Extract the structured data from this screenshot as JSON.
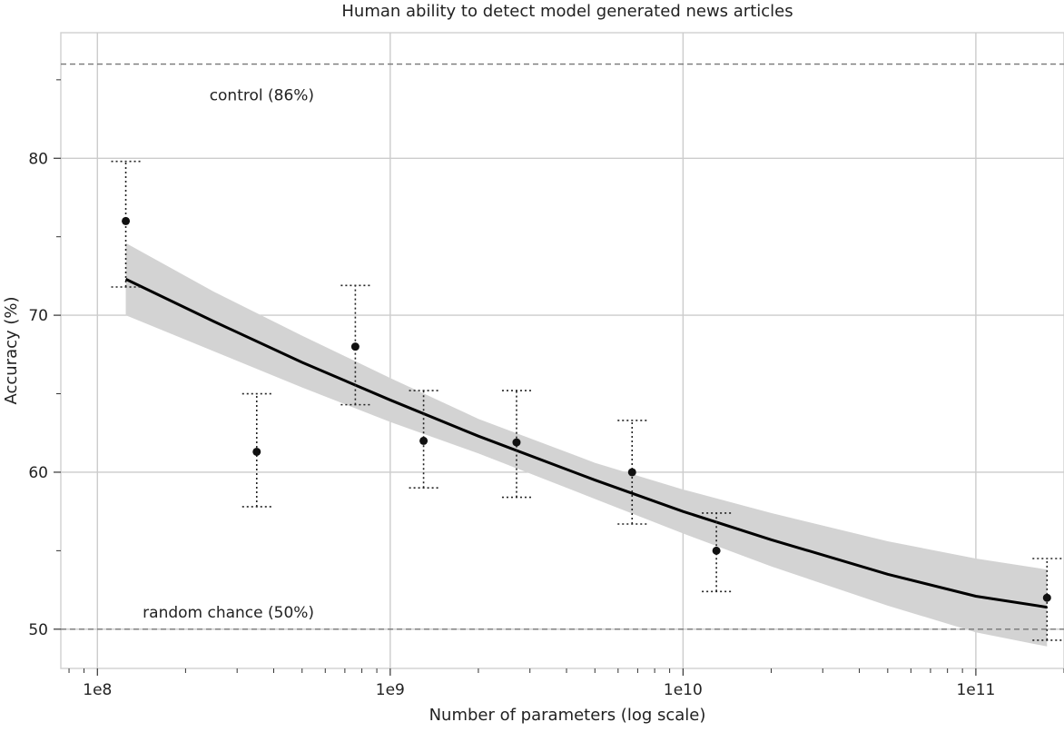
{
  "chart_data": {
    "type": "scatter",
    "title": "Human ability to detect model generated news articles",
    "xlabel": "Number of parameters (log scale)",
    "ylabel": "Accuracy (%)",
    "xscale": "log",
    "xlim": [
      75000000.0,
      200000000000.0
    ],
    "ylim": [
      47.5,
      88
    ],
    "grid": true,
    "legend": "none",
    "x_ticks": [
      {
        "value": 100000000.0,
        "label": "1e8"
      },
      {
        "value": 1000000000.0,
        "label": "1e9"
      },
      {
        "value": 10000000000.0,
        "label": "1e10"
      },
      {
        "value": 100000000000.0,
        "label": "1e11"
      }
    ],
    "y_ticks": [
      {
        "value": 50,
        "label": "50"
      },
      {
        "value": 60,
        "label": "60"
      },
      {
        "value": 70,
        "label": "70"
      },
      {
        "value": 80,
        "label": "80"
      }
    ],
    "points": [
      {
        "x": 125000000.0,
        "y": 76.0,
        "err_low": 71.8,
        "err_high": 79.8
      },
      {
        "x": 350000000.0,
        "y": 61.3,
        "err_low": 57.8,
        "err_high": 65.0
      },
      {
        "x": 760000000.0,
        "y": 68.0,
        "err_low": 64.3,
        "err_high": 71.9
      },
      {
        "x": 1300000000.0,
        "y": 62.0,
        "err_low": 59.0,
        "err_high": 65.2
      },
      {
        "x": 2700000000.0,
        "y": 61.9,
        "err_low": 58.4,
        "err_high": 65.2
      },
      {
        "x": 6700000000.0,
        "y": 60.0,
        "err_low": 56.7,
        "err_high": 63.3
      },
      {
        "x": 13000000000.0,
        "y": 55.0,
        "err_low": 52.4,
        "err_high": 57.4
      },
      {
        "x": 175000000000.0,
        "y": 52.0,
        "err_low": 49.3,
        "err_high": 54.5
      }
    ],
    "fit_line": {
      "x": [
        125000000.0,
        250000000.0,
        500000000.0,
        1000000000.0,
        2000000000.0,
        5000000000.0,
        10000000000.0,
        20000000000.0,
        50000000000.0,
        100000000000.0,
        175000000000.0
      ],
      "y": [
        72.3,
        69.6,
        67.0,
        64.6,
        62.3,
        59.5,
        57.5,
        55.7,
        53.5,
        52.1,
        51.4
      ],
      "ci_low": [
        70.0,
        67.7,
        65.4,
        63.2,
        61.2,
        58.3,
        56.1,
        54.0,
        51.5,
        49.8,
        48.9
      ],
      "ci_high": [
        74.6,
        71.5,
        68.7,
        66.0,
        63.4,
        60.6,
        58.9,
        57.4,
        55.6,
        54.5,
        53.8
      ]
    },
    "reference_lines": [
      {
        "y": 86,
        "label": "control (86%)",
        "label_x": 550000000.0
      },
      {
        "y": 50,
        "label": "random chance (50%)",
        "label_x": 550000000.0
      }
    ]
  }
}
